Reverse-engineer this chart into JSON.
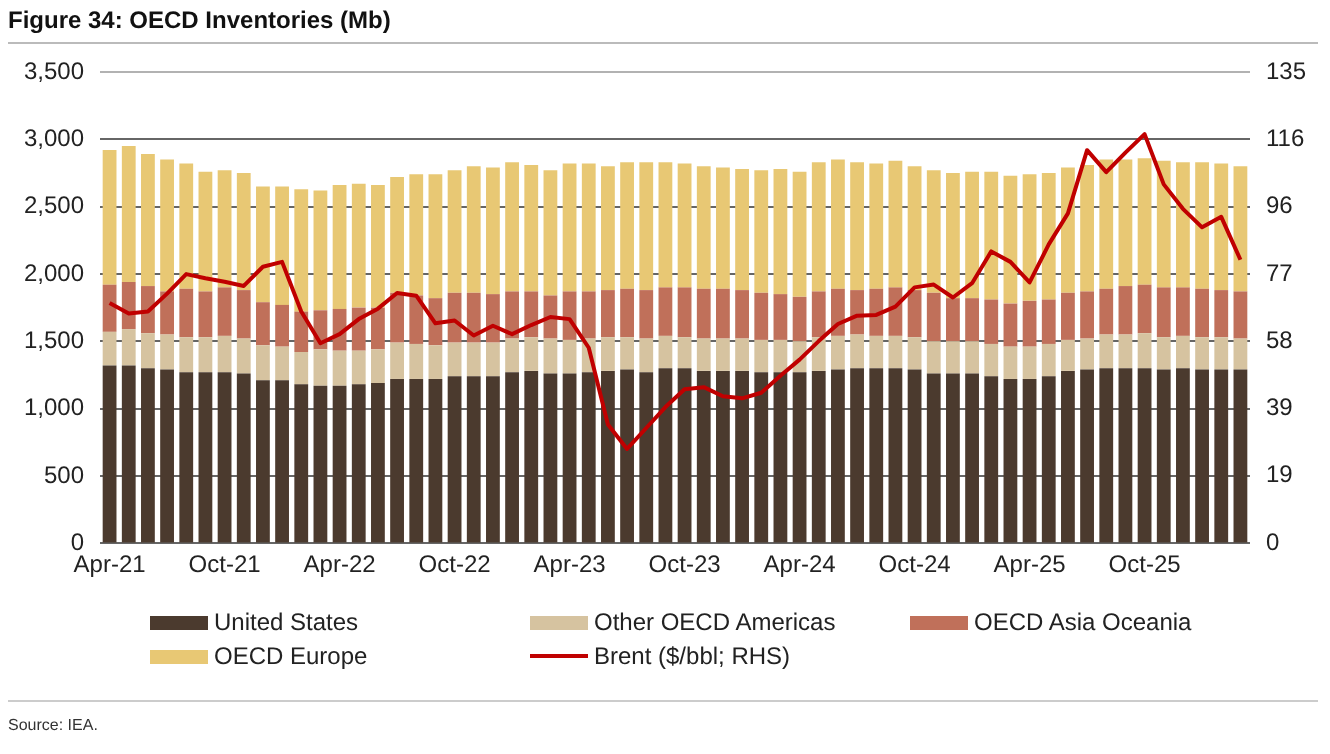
{
  "chart_data": {
    "type": "bar",
    "title": "Figure 34: OECD Inventories (Mb)",
    "categories": [
      "Apr-21",
      null,
      null,
      null,
      null,
      null,
      "Oct-21",
      null,
      null,
      null,
      null,
      null,
      "Apr-22",
      null,
      null,
      null,
      null,
      null,
      "Oct-22",
      null,
      null,
      null,
      null,
      null,
      "Apr-23",
      null,
      null,
      null,
      null,
      null,
      "Oct-23",
      null,
      null,
      null,
      null,
      null,
      "Apr-24",
      null,
      null,
      null,
      null,
      null,
      "Oct-24",
      null,
      null,
      null,
      null,
      null,
      "Apr-25",
      null,
      null,
      null,
      null,
      null,
      "Oct-25",
      null,
      null,
      null,
      null,
      null
    ],
    "stacked": true,
    "series": [
      {
        "name": "United States",
        "color": "#4b3a2e",
        "values": [
          1320,
          1320,
          1300,
          1290,
          1270,
          1270,
          1270,
          1260,
          1210,
          1210,
          1180,
          1170,
          1170,
          1180,
          1190,
          1220,
          1220,
          1220,
          1240,
          1240,
          1240,
          1270,
          1280,
          1260,
          1260,
          1270,
          1280,
          1290,
          1270,
          1300,
          1300,
          1280,
          1280,
          1280,
          1270,
          1270,
          1270,
          1280,
          1290,
          1300,
          1300,
          1300,
          1290,
          1260,
          1260,
          1260,
          1240,
          1220,
          1220,
          1240,
          1280,
          1290,
          1300,
          1300,
          1300,
          1290,
          1300,
          1290,
          1290,
          1290
        ]
      },
      {
        "name": "Other OECD Americas",
        "color": "#d6c3a0",
        "values": [
          250,
          270,
          260,
          260,
          260,
          260,
          270,
          260,
          260,
          250,
          240,
          270,
          260,
          250,
          250,
          270,
          260,
          250,
          250,
          250,
          250,
          250,
          250,
          260,
          250,
          250,
          250,
          240,
          250,
          240,
          230,
          240,
          240,
          240,
          240,
          240,
          230,
          250,
          250,
          250,
          240,
          240,
          240,
          240,
          240,
          240,
          240,
          240,
          240,
          240,
          230,
          230,
          250,
          250,
          260,
          240,
          240,
          240,
          240,
          230
        ]
      },
      {
        "name": "OECD Asia Oceania",
        "color": "#c0705a",
        "values": [
          350,
          350,
          350,
          320,
          360,
          340,
          360,
          360,
          320,
          310,
          300,
          290,
          310,
          320,
          310,
          370,
          360,
          350,
          370,
          370,
          360,
          350,
          340,
          320,
          360,
          350,
          350,
          360,
          360,
          360,
          370,
          370,
          370,
          360,
          350,
          340,
          330,
          340,
          350,
          330,
          350,
          360,
          350,
          360,
          320,
          320,
          330,
          320,
          340,
          330,
          350,
          350,
          340,
          360,
          360,
          370,
          360,
          360,
          350,
          350
        ]
      },
      {
        "name": "OECD Europe",
        "color": "#e8c874",
        "values": [
          1000,
          1010,
          980,
          980,
          930,
          890,
          870,
          870,
          860,
          880,
          910,
          890,
          920,
          920,
          910,
          860,
          900,
          920,
          910,
          940,
          940,
          960,
          940,
          930,
          950,
          950,
          920,
          940,
          950,
          930,
          920,
          910,
          900,
          900,
          910,
          930,
          930,
          960,
          960,
          950,
          930,
          940,
          920,
          910,
          930,
          940,
          950,
          950,
          940,
          940,
          930,
          940,
          960,
          940,
          940,
          940,
          930,
          940,
          940,
          930
        ]
      },
      {
        "name": "Brent ($/bbl; RHS)",
        "type": "line",
        "axis": "y2",
        "color": "#c00000",
        "values": [
          68.8,
          65.8,
          66.4,
          71.5,
          77.1,
          75.9,
          74.9,
          73.7,
          79.2,
          80.6,
          66.4,
          57.3,
          59.9,
          64.2,
          67.2,
          71.7,
          70.9,
          63.0,
          63.8,
          59.5,
          62.3,
          59.9,
          62.5,
          64.8,
          64.2,
          56.0,
          34.0,
          27.0,
          33.0,
          39.0,
          44.1,
          44.7,
          42.1,
          41.5,
          43.1,
          48.0,
          52.6,
          57.9,
          62.8,
          65.2,
          65.4,
          67.8,
          73.3,
          74.1,
          70.4,
          74.5,
          83.6,
          80.6,
          74.7,
          85.6,
          94.5,
          112.6,
          106.3,
          111.9,
          117.2,
          102.8,
          95.8,
          90.5,
          93.5,
          81.2
        ]
      }
    ],
    "ylim": [
      0,
      3500
    ],
    "yticks": [
      0,
      {
        "value": 500,
        "label": "500"
      },
      {
        "value": 1000,
        "label": "1,000"
      },
      {
        "value": 1500,
        "label": "1,500"
      },
      {
        "value": 2000,
        "label": "2,000"
      },
      {
        "value": 2500,
        "label": "2,500"
      },
      {
        "value": 3000,
        "label": "3,000"
      },
      {
        "value": 3500,
        "label": "3,500"
      }
    ],
    "y2lim": [
      0,
      135
    ],
    "y2ticks": [
      0,
      {
        "value": 19.29,
        "label": "19"
      },
      {
        "value": 38.57,
        "label": "39"
      },
      {
        "value": 57.86,
        "label": "58"
      },
      {
        "value": 77.14,
        "label": "77"
      },
      {
        "value": 96.43,
        "label": "96"
      },
      {
        "value": 115.71,
        "label": "116"
      },
      135
    ],
    "grid": "y",
    "legend": "bottom",
    "annotations": [
      "Source: IEA."
    ]
  }
}
